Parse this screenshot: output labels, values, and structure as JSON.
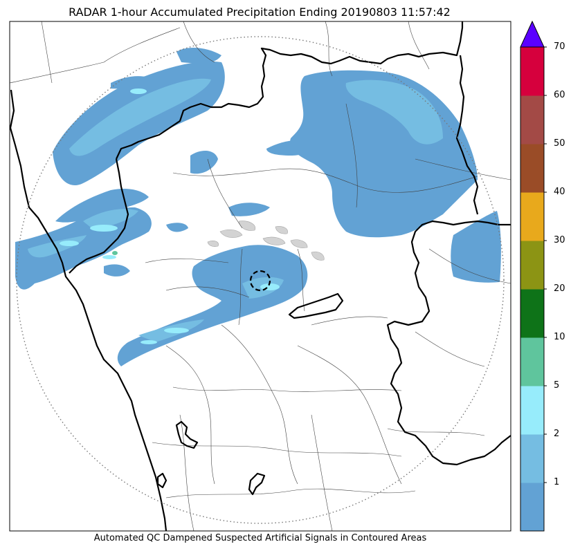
{
  "title": "RADAR 1-hour Accumulated Precipitation Ending 20190803 11:57:42",
  "footer": "Automated QC Dampened Suspected Artificial Signals in Contoured Areas",
  "colorbar": {
    "extend": "max",
    "extend_color": "#5a00ff",
    "bins": [
      {
        "from": 0,
        "to": 1,
        "color": "#62a2d4"
      },
      {
        "from": 1,
        "to": 2,
        "color": "#75bde2"
      },
      {
        "from": 2,
        "to": 5,
        "color": "#97ecfb"
      },
      {
        "from": 5,
        "to": 10,
        "color": "#5fc59d"
      },
      {
        "from": 10,
        "to": 20,
        "color": "#0e7318"
      },
      {
        "from": 20,
        "to": 30,
        "color": "#8c9414"
      },
      {
        "from": 30,
        "to": 40,
        "color": "#e8a91c"
      },
      {
        "from": 40,
        "to": 50,
        "color": "#9a4c27"
      },
      {
        "from": 50,
        "to": 60,
        "color": "#a34a46"
      },
      {
        "from": 60,
        "to": 70,
        "color": "#d6003d"
      }
    ],
    "tick_labels": [
      "1",
      "2",
      "5",
      "10",
      "20",
      "30",
      "40",
      "50",
      "60",
      "70"
    ]
  },
  "map": {
    "range_ring": "dotted",
    "radar_site_marker": "dashed-circle",
    "coastline_color": "#000000",
    "boundary_color": "#404040",
    "qc_contour_color": "#bbbbbb"
  }
}
